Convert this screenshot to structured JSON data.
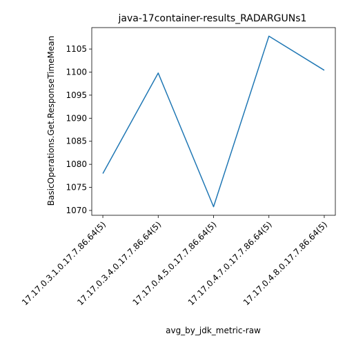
{
  "chart_data": {
    "type": "line",
    "title": "java-17container-results_RADARGUNs1",
    "xlabel": "avg_by_jdk_metric-raw",
    "ylabel": "BasicOperations.Get.ResponseTimeMean",
    "categories": [
      "17.17.0.3.1.0.17.7.86.64(5)",
      "17.17.0.3.4.0.17.7.86.64(5)",
      "17.17.0.4.5.0.17.7.86.64(5)",
      "17.17.0.4.7.0.17.7.86.64(5)",
      "17.17.0.4.8.0.17.7.86.64(5)"
    ],
    "series": [
      {
        "values": [
          1078.0,
          1099.8,
          1070.8,
          1107.8,
          1100.4
        ],
        "color": "#1f77b4"
      }
    ],
    "yticks": [
      1070,
      1075,
      1080,
      1085,
      1090,
      1095,
      1100,
      1105
    ],
    "ylim": [
      1068.95,
      1109.65
    ],
    "grid": false,
    "legend": "none"
  }
}
